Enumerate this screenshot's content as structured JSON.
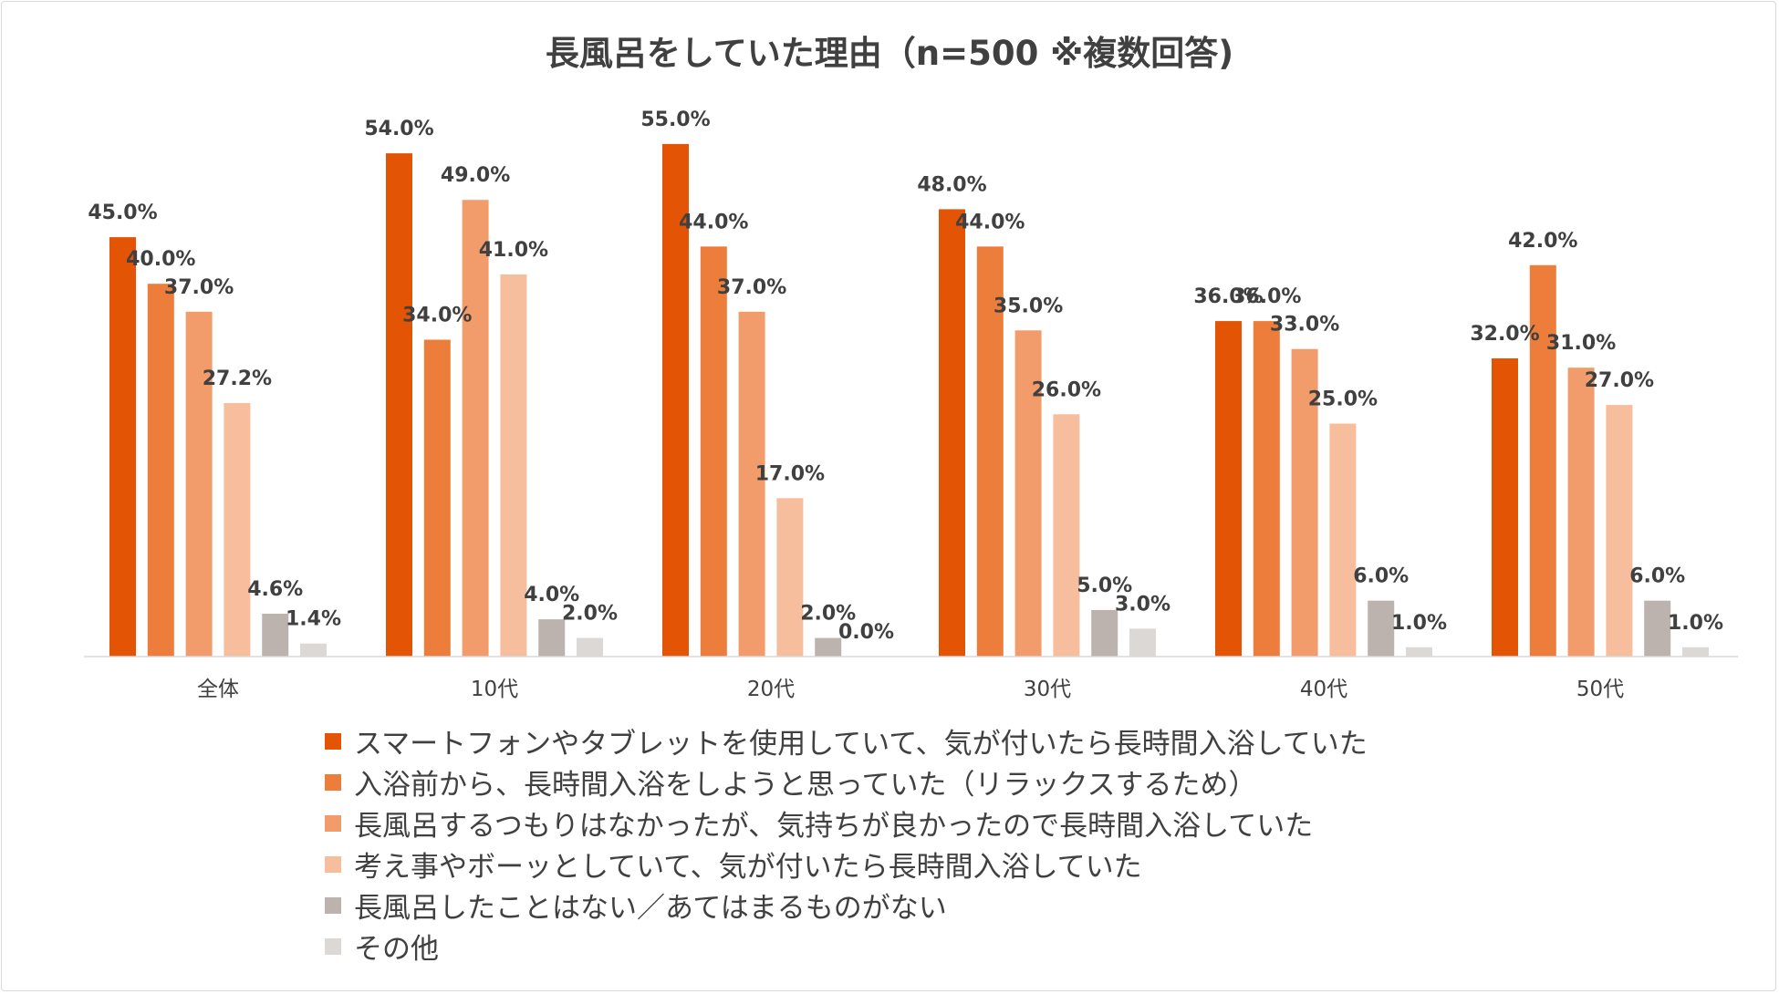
{
  "chart_data": {
    "type": "bar",
    "title": "長風呂をしていた理由（n=500 ※複数回答)",
    "categories": [
      "全体",
      "10代",
      "20代",
      "30代",
      "40代",
      "50代"
    ],
    "series": [
      {
        "name": "スマートフォンやタブレットを使用していて、気が付いたら長時間入浴していた",
        "color": "#E35404",
        "values": [
          45.0,
          54.0,
          55.0,
          48.0,
          36.0,
          32.0
        ]
      },
      {
        "name": "入浴前から、長時間入浴をしようと思っていた（リラックスするため）",
        "color": "#ED7D3B",
        "values": [
          40.0,
          34.0,
          44.0,
          44.0,
          36.0,
          42.0
        ]
      },
      {
        "name": "長風呂するつもりはなかったが、気持ちが良かったので長時間入浴していた",
        "color": "#F29C6B",
        "values": [
          37.0,
          49.0,
          37.0,
          35.0,
          33.0,
          31.0
        ]
      },
      {
        "name": "考え事やボーッとしていて、気が付いたら長時間入浴していた",
        "color": "#F7BE9D",
        "values": [
          27.2,
          41.0,
          17.0,
          26.0,
          25.0,
          27.0
        ]
      },
      {
        "name": "長風呂したことはない／あてはまるものがない",
        "color": "#BCB3AE",
        "values": [
          4.6,
          4.0,
          2.0,
          5.0,
          6.0,
          6.0
        ]
      },
      {
        "name": "その他",
        "color": "#DCD8D6",
        "values": [
          1.4,
          2.0,
          0.0,
          3.0,
          1.0,
          1.0
        ]
      }
    ],
    "value_labels": [
      [
        "45.0%",
        "40.0%",
        "37.0%",
        "27.2%",
        "4.6%",
        "1.4%"
      ],
      [
        "54.0%",
        "34.0%",
        "49.0%",
        "41.0%",
        "4.0%",
        "2.0%"
      ],
      [
        "55.0%",
        "44.0%",
        "37.0%",
        "17.0%",
        "2.0%",
        "0.0%"
      ],
      [
        "48.0%",
        "44.0%",
        "35.0%",
        "26.0%",
        "5.0%",
        "3.0%"
      ],
      [
        "36.0%",
        "36.0%",
        "33.0%",
        "25.0%",
        "6.0%",
        "1.0%"
      ],
      [
        "32.0%",
        "42.0%",
        "31.0%",
        "27.0%",
        "6.0%",
        "1.0%"
      ]
    ],
    "ylim": [
      0,
      60
    ],
    "xlabel": "",
    "ylabel": "",
    "grid": false,
    "legend_position": "bottom"
  }
}
